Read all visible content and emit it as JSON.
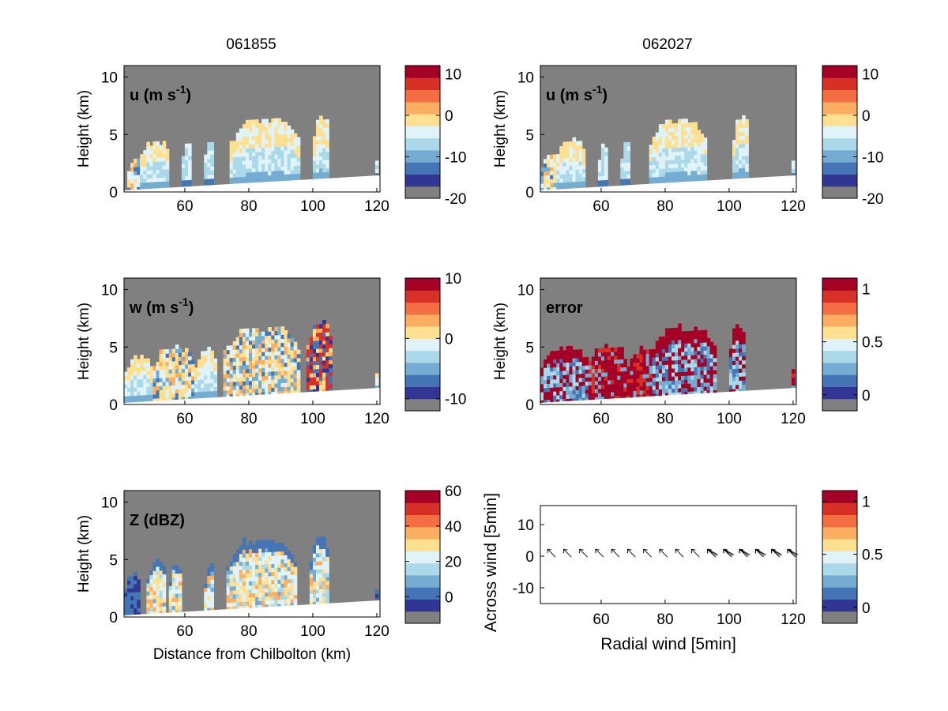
{
  "figure": {
    "columns": [
      "061855",
      "062027"
    ]
  },
  "chart_data": [
    {
      "id": "u-left",
      "type": "heatmap",
      "col": 0,
      "row": 0,
      "label": "u (m s",
      "label_sup": "-1",
      "label_tail": ")",
      "ylabel": "Height (km)",
      "xlabel": "",
      "xlim": [
        41,
        121
      ],
      "ylim": [
        0,
        11
      ],
      "xticks": [
        60,
        80,
        100,
        120
      ],
      "yticks": [
        0,
        5,
        10
      ],
      "cbar": {
        "ticks": [
          10,
          0,
          -10,
          -20
        ],
        "range": [
          -20,
          12
        ]
      },
      "field": "u",
      "blobs": [
        {
          "x0": 42,
          "x1": 50,
          "top": 2.9,
          "tint": "mixed"
        },
        {
          "x0": 46,
          "x1": 55,
          "top": 4.2,
          "tint": "warm"
        },
        {
          "x0": 59,
          "x1": 62,
          "top": 4.0,
          "tint": "cool"
        },
        {
          "x0": 66,
          "x1": 69,
          "top": 4.3,
          "tint": "cool"
        },
        {
          "x0": 74,
          "x1": 96,
          "top": 6.0,
          "tint": "warm"
        },
        {
          "x0": 100,
          "x1": 105,
          "top": 6.2,
          "tint": "warm"
        },
        {
          "x0": 119.5,
          "x1": 120.5,
          "top": 3.5,
          "tint": "cool"
        }
      ]
    },
    {
      "id": "u-right",
      "type": "heatmap",
      "col": 1,
      "row": 0,
      "label": "u (m s",
      "label_sup": "-1",
      "label_tail": ")",
      "ylabel": "Height (km)",
      "xlabel": "",
      "xlim": [
        41,
        121
      ],
      "ylim": [
        0,
        11
      ],
      "xticks": [
        60,
        80,
        100,
        120
      ],
      "yticks": [
        0,
        5,
        10
      ],
      "cbar": {
        "ticks": [
          10,
          0,
          -10,
          -20
        ],
        "range": [
          -20,
          12
        ]
      },
      "field": "u",
      "blobs": [
        {
          "x0": 41,
          "x1": 50,
          "top": 3.2,
          "tint": "mixed"
        },
        {
          "x0": 46,
          "x1": 55,
          "top": 4.4,
          "tint": "warm"
        },
        {
          "x0": 59,
          "x1": 62,
          "top": 3.8,
          "tint": "cool"
        },
        {
          "x0": 66,
          "x1": 69,
          "top": 4.0,
          "tint": "cool"
        },
        {
          "x0": 75,
          "x1": 93,
          "top": 6.0,
          "tint": "warm"
        },
        {
          "x0": 101,
          "x1": 106,
          "top": 6.2,
          "tint": "warm"
        },
        {
          "x0": 119.5,
          "x1": 120.5,
          "top": 3.2,
          "tint": "cool"
        }
      ]
    },
    {
      "id": "w-left",
      "type": "heatmap",
      "col": 0,
      "row": 1,
      "label": "w (m s",
      "label_sup": "-1",
      "label_tail": ")",
      "ylabel": "Height (km)",
      "xlabel": "",
      "xlim": [
        41,
        121
      ],
      "ylim": [
        0,
        11
      ],
      "xticks": [
        60,
        80,
        100,
        120
      ],
      "yticks": [
        0,
        5,
        10
      ],
      "cbar": {
        "ticks": [
          10,
          0,
          -10
        ],
        "range": [
          -12,
          10
        ]
      },
      "field": "w",
      "blobs": [
        {
          "x0": 41,
          "x1": 50,
          "top": 3.8,
          "tint": "warm"
        },
        {
          "x0": 50,
          "x1": 63,
          "top": 4.7,
          "tint": "mixed"
        },
        {
          "x0": 63,
          "x1": 70,
          "top": 4.5,
          "tint": "warm"
        },
        {
          "x0": 72,
          "x1": 96,
          "top": 6.4,
          "tint": "mixed"
        },
        {
          "x0": 98,
          "x1": 106,
          "top": 6.8,
          "tint": "hot"
        },
        {
          "x0": 119.5,
          "x1": 120.5,
          "top": 4.0,
          "tint": "warm"
        }
      ]
    },
    {
      "id": "error-right",
      "type": "heatmap",
      "col": 1,
      "row": 1,
      "label": "error",
      "label_sup": "",
      "label_tail": "",
      "ylabel": "Height (km)",
      "xlabel": "",
      "xlim": [
        41,
        121
      ],
      "ylim": [
        0,
        11
      ],
      "xticks": [
        60,
        80,
        100,
        120
      ],
      "yticks": [
        0,
        5,
        10
      ],
      "cbar": {
        "ticks": [
          1,
          0.5,
          0
        ],
        "range": [
          -0.15,
          1.1
        ]
      },
      "field": "error",
      "blobs": [
        {
          "x0": 41,
          "x1": 56,
          "top": 4.6,
          "tint": "err"
        },
        {
          "x0": 56,
          "x1": 68,
          "top": 4.8,
          "tint": "errlow"
        },
        {
          "x0": 68,
          "x1": 77,
          "top": 4.6,
          "tint": "errlow"
        },
        {
          "x0": 76,
          "x1": 96,
          "top": 6.5,
          "tint": "err"
        },
        {
          "x0": 100,
          "x1": 105,
          "top": 6.6,
          "tint": "err"
        },
        {
          "x0": 119.5,
          "x1": 120.5,
          "top": 4.0,
          "tint": "errlow"
        }
      ]
    },
    {
      "id": "z-left",
      "type": "heatmap",
      "col": 0,
      "row": 2,
      "label": "Z (dBZ)",
      "label_sup": "",
      "label_tail": "",
      "ylabel": "Height (km)",
      "xlabel": "Distance from Chilbolton (km)",
      "xlim": [
        41,
        121
      ],
      "ylim": [
        0,
        11
      ],
      "xticks": [
        60,
        80,
        100,
        120
      ],
      "yticks": [
        0,
        5,
        10
      ],
      "cbar": {
        "ticks": [
          60,
          40,
          20,
          0
        ],
        "range": [
          -15,
          60
        ]
      },
      "field": "Z",
      "blobs": [
        {
          "x0": 41,
          "x1": 46,
          "top": 3.4,
          "tint": "zweak"
        },
        {
          "x0": 48,
          "x1": 54,
          "top": 4.6,
          "tint": "z"
        },
        {
          "x0": 55,
          "x1": 59,
          "top": 4.3,
          "tint": "z"
        },
        {
          "x0": 66,
          "x1": 69,
          "top": 4.3,
          "tint": "z"
        },
        {
          "x0": 73,
          "x1": 95,
          "top": 6.4,
          "tint": "z"
        },
        {
          "x0": 99,
          "x1": 105,
          "top": 6.6,
          "tint": "z"
        },
        {
          "x0": 119.5,
          "x1": 120.5,
          "top": 3.2,
          "tint": "zweak"
        }
      ]
    }
  ],
  "quiver": {
    "id": "wind-right",
    "type": "scatter",
    "xlabel": "Radial wind [5min]",
    "ylabel": "Across wind [5min]",
    "xlim": [
      41,
      121
    ],
    "ylim": [
      -15,
      16
    ],
    "xticks": [
      60,
      80,
      100,
      120
    ],
    "yticks": [
      10,
      0,
      -10
    ],
    "cbar": {
      "ticks": [
        1,
        0.5,
        0
      ],
      "range": [
        -0.15,
        1.1
      ]
    },
    "arrow_x": [
      44,
      49,
      54,
      59,
      64,
      69,
      74,
      79,
      84,
      89,
      94,
      99,
      104,
      109,
      114,
      119
    ],
    "arrow_y": 1.2
  },
  "colors": {
    "background": "#808080",
    "colormap": [
      "#313695",
      "#4575b4",
      "#74add1",
      "#abd9e9",
      "#e0f3f8",
      "#fee090",
      "#fdae61",
      "#f46d43",
      "#d73027",
      "#a50026"
    ]
  }
}
